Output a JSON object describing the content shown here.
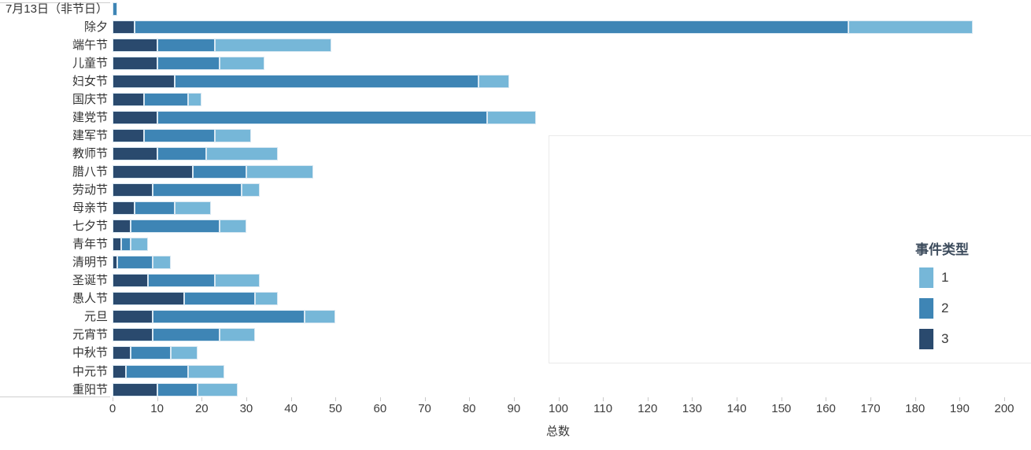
{
  "chart": {
    "xlabel": "总数",
    "legend_title": "事件类型",
    "accent_colors": {
      "series1": "#76b7d8",
      "series2": "#3e85b5",
      "series3": "#2a4a6e"
    }
  },
  "chart_data": {
    "type": "bar",
    "orientation": "horizontal",
    "stacked": true,
    "title": "",
    "xlabel": "总数",
    "ylabel": "",
    "xlim": [
      0,
      200
    ],
    "xticks": [
      0,
      10,
      20,
      30,
      40,
      50,
      60,
      70,
      80,
      90,
      100,
      110,
      120,
      130,
      140,
      150,
      160,
      170,
      180,
      190,
      200
    ],
    "grid": false,
    "legend": {
      "title": "事件类型",
      "position": "right"
    },
    "categories": [
      "7月13日（非节日）",
      "除夕",
      "端午节",
      "儿童节",
      "妇女节",
      "国庆节",
      "建党节",
      "建军节",
      "教师节",
      "腊八节",
      "劳动节",
      "母亲节",
      "七夕节",
      "青年节",
      "清明节",
      "圣诞节",
      "愚人节",
      "元旦",
      "元宵节",
      "中秋节",
      "中元节",
      "重阳节"
    ],
    "series": [
      {
        "name": "1",
        "color": "#76b7d8",
        "values": [
          0,
          28,
          26,
          10,
          7,
          3,
          11,
          8,
          16,
          15,
          4,
          8,
          6,
          4,
          4,
          10,
          5,
          7,
          8,
          6,
          8,
          9
        ]
      },
      {
        "name": "2",
        "color": "#3e85b5",
        "values": [
          1,
          160,
          13,
          14,
          68,
          10,
          74,
          16,
          11,
          12,
          20,
          9,
          20,
          2,
          8,
          15,
          16,
          34,
          15,
          9,
          14,
          9
        ]
      },
      {
        "name": "3",
        "color": "#2a4a6e",
        "values": [
          0,
          5,
          10,
          10,
          14,
          7,
          10,
          7,
          10,
          18,
          9,
          5,
          4,
          2,
          1,
          8,
          16,
          9,
          9,
          4,
          3,
          10
        ]
      }
    ],
    "totals": [
      1,
      193,
      49,
      34,
      89,
      20,
      95,
      31,
      37,
      45,
      33,
      22,
      30,
      8,
      13,
      33,
      37,
      50,
      32,
      19,
      25,
      28
    ]
  }
}
